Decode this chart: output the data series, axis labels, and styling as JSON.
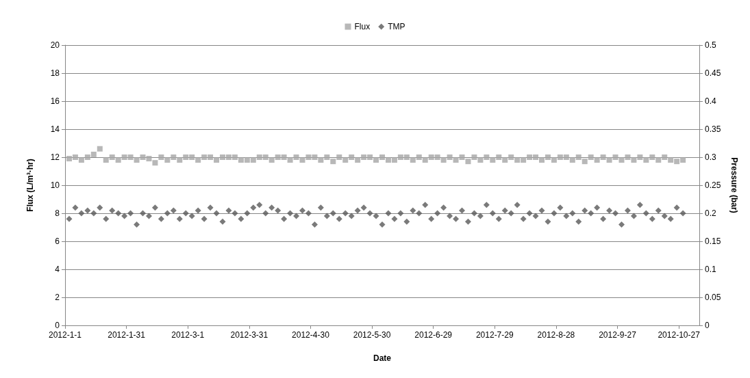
{
  "chart_data": {
    "type": "scatter",
    "xlabel": "Date",
    "ylabel": "Flux (L/m³·hr)",
    "y2label": "Pressure (bar)",
    "legend": "top",
    "grid": "y",
    "xlim": [
      "2012-01-01",
      "2012-11-06"
    ],
    "xticks": [
      {
        "value": "2012-01-01",
        "label": "2012-1-1"
      },
      {
        "value": "2012-01-31",
        "label": "2012-1-31"
      },
      {
        "value": "2012-03-01",
        "label": "2012-3-1"
      },
      {
        "value": "2012-03-31",
        "label": "2012-3-31"
      },
      {
        "value": "2012-04-30",
        "label": "2012-4-30"
      },
      {
        "value": "2012-05-30",
        "label": "2012-5-30"
      },
      {
        "value": "2012-06-29",
        "label": "2012-6-29"
      },
      {
        "value": "2012-07-29",
        "label": "2012-7-29"
      },
      {
        "value": "2012-08-28",
        "label": "2012-8-28"
      },
      {
        "value": "2012-09-27",
        "label": "2012-9-27"
      },
      {
        "value": "2012-10-27",
        "label": "2012-10-27"
      }
    ],
    "ylim": [
      0,
      20
    ],
    "yticks": [
      0,
      2,
      4,
      6,
      8,
      10,
      12,
      14,
      16,
      18,
      20
    ],
    "y2lim": [
      0,
      0.5
    ],
    "y2ticks": [
      0,
      0.05,
      0.1,
      0.15,
      0.2,
      0.25,
      0.3,
      0.35,
      0.4,
      0.45,
      0.5
    ],
    "x": [
      "2012-01-03",
      "2012-01-06",
      "2012-01-09",
      "2012-01-12",
      "2012-01-15",
      "2012-01-18",
      "2012-01-21",
      "2012-01-24",
      "2012-01-27",
      "2012-01-30",
      "2012-02-02",
      "2012-02-05",
      "2012-02-08",
      "2012-02-11",
      "2012-02-14",
      "2012-02-17",
      "2012-02-20",
      "2012-02-23",
      "2012-02-26",
      "2012-02-29",
      "2012-03-03",
      "2012-03-06",
      "2012-03-09",
      "2012-03-12",
      "2012-03-15",
      "2012-03-18",
      "2012-03-21",
      "2012-03-24",
      "2012-03-27",
      "2012-03-30",
      "2012-04-02",
      "2012-04-05",
      "2012-04-08",
      "2012-04-11",
      "2012-04-14",
      "2012-04-17",
      "2012-04-20",
      "2012-04-23",
      "2012-04-26",
      "2012-04-29",
      "2012-05-02",
      "2012-05-05",
      "2012-05-08",
      "2012-05-11",
      "2012-05-14",
      "2012-05-17",
      "2012-05-20",
      "2012-05-23",
      "2012-05-26",
      "2012-05-29",
      "2012-06-01",
      "2012-06-04",
      "2012-06-07",
      "2012-06-10",
      "2012-06-13",
      "2012-06-16",
      "2012-06-19",
      "2012-06-22",
      "2012-06-25",
      "2012-06-28",
      "2012-07-01",
      "2012-07-04",
      "2012-07-07",
      "2012-07-10",
      "2012-07-13",
      "2012-07-16",
      "2012-07-19",
      "2012-07-22",
      "2012-07-25",
      "2012-07-28",
      "2012-07-31",
      "2012-08-03",
      "2012-08-06",
      "2012-08-09",
      "2012-08-12",
      "2012-08-15",
      "2012-08-18",
      "2012-08-21",
      "2012-08-24",
      "2012-08-27",
      "2012-08-30",
      "2012-09-02",
      "2012-09-05",
      "2012-09-08",
      "2012-09-11",
      "2012-09-14",
      "2012-09-17",
      "2012-09-20",
      "2012-09-23",
      "2012-09-26",
      "2012-09-29",
      "2012-10-02",
      "2012-10-05",
      "2012-10-08",
      "2012-10-11",
      "2012-10-14",
      "2012-10-17",
      "2012-10-20",
      "2012-10-23",
      "2012-10-26",
      "2012-10-29"
    ],
    "series": [
      {
        "name": "Flux",
        "color": "#a6a6a6",
        "marker": "square",
        "values": [
          11.9,
          12,
          11.8,
          12,
          12.2,
          12.6,
          11.8,
          12,
          11.8,
          12,
          12,
          11.8,
          12,
          11.9,
          11.6,
          12,
          11.8,
          12,
          11.8,
          12,
          12,
          11.8,
          12,
          12,
          11.8,
          12,
          12,
          12,
          11.8,
          11.8,
          11.8,
          12,
          12,
          11.8,
          12,
          12,
          11.8,
          12,
          11.8,
          12,
          12,
          11.8,
          12,
          11.7,
          12,
          11.8,
          12,
          11.8,
          12,
          12,
          11.8,
          12,
          11.8,
          11.8,
          12,
          12,
          11.8,
          12,
          11.8,
          12,
          12,
          11.8,
          12,
          11.8,
          12,
          11.7,
          12,
          11.8,
          12,
          11.8,
          12,
          11.8,
          12,
          11.8,
          11.8,
          12,
          12,
          11.8,
          12,
          11.8,
          12,
          12,
          11.8,
          12,
          11.7,
          12,
          11.8,
          12,
          11.8,
          12,
          11.8,
          12,
          11.8,
          12,
          11.8,
          12,
          11.8,
          12,
          11.8,
          11.7,
          11.8
        ]
      },
      {
        "name": "TMP",
        "color": "#595959",
        "marker": "diamond",
        "axis": "y2",
        "values": [
          0.19,
          0.21,
          0.2,
          0.205,
          0.2,
          0.21,
          0.19,
          0.205,
          0.2,
          0.195,
          0.2,
          0.18,
          0.2,
          0.195,
          0.21,
          0.19,
          0.2,
          0.205,
          0.19,
          0.2,
          0.195,
          0.205,
          0.19,
          0.21,
          0.2,
          0.185,
          0.205,
          0.2,
          0.19,
          0.2,
          0.21,
          0.215,
          0.2,
          0.21,
          0.205,
          0.19,
          0.2,
          0.195,
          0.205,
          0.2,
          0.18,
          0.21,
          0.195,
          0.2,
          0.19,
          0.2,
          0.195,
          0.205,
          0.21,
          0.2,
          0.195,
          0.18,
          0.2,
          0.19,
          0.2,
          0.185,
          0.205,
          0.2,
          0.215,
          0.19,
          0.2,
          0.21,
          0.195,
          0.19,
          0.205,
          0.185,
          0.2,
          0.195,
          0.215,
          0.2,
          0.19,
          0.205,
          0.2,
          0.215,
          0.19,
          0.2,
          0.195,
          0.205,
          0.185,
          0.2,
          0.21,
          0.195,
          0.2,
          0.185,
          0.205,
          0.2,
          0.21,
          0.19,
          0.205,
          0.2,
          0.18,
          0.205,
          0.195,
          0.215,
          0.2,
          0.19,
          0.205,
          0.195,
          0.19,
          0.21,
          0.2
        ]
      }
    ]
  }
}
